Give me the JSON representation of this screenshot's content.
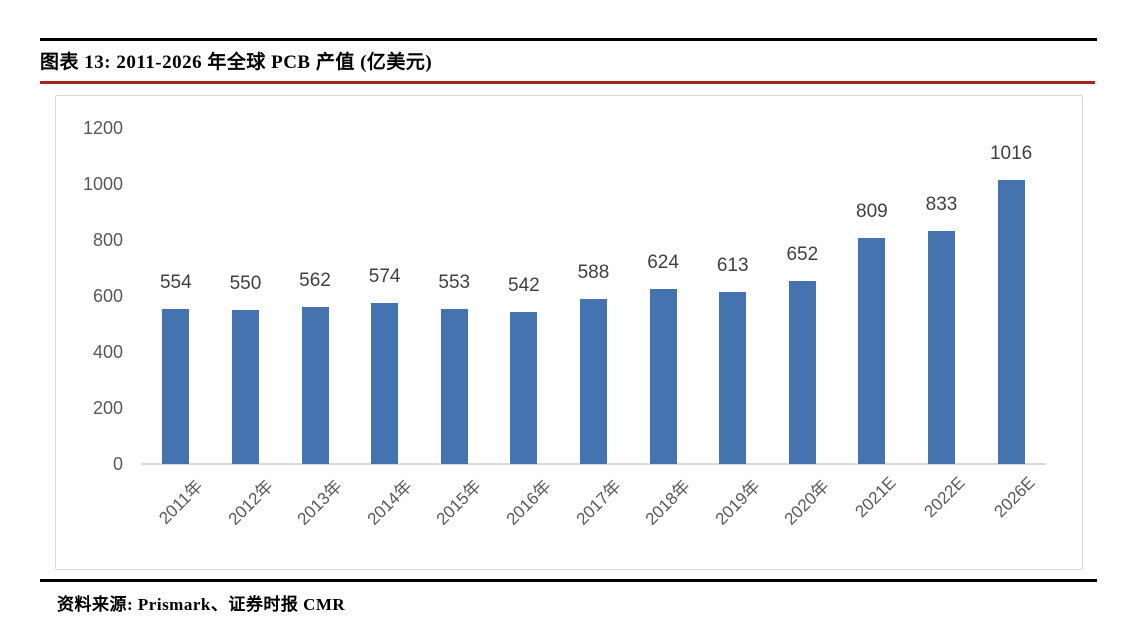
{
  "header": {
    "title": "图表 13: 2011-2026 年全球 PCB 产值 (亿美元)"
  },
  "footer": {
    "source": "资料来源: Prismark、证券时报 CMR"
  },
  "colors": {
    "bar": "#4473B0",
    "accent_rule": "#A6241C",
    "rule": "#000000",
    "axis_text": "#595959",
    "data_label_text": "#404040",
    "chart_frame": "#D9D9D9",
    "axis_line": "#D9D9D9"
  },
  "chart_data": {
    "type": "bar",
    "title": "2011-2026 年全球 PCB 产值 (亿美元)",
    "categories": [
      "2011年",
      "2012年",
      "2013年",
      "2014年",
      "2015年",
      "2016年",
      "2017年",
      "2018年",
      "2019年",
      "2020年",
      "2021E",
      "2022E",
      "2026E"
    ],
    "values": [
      554,
      550,
      562,
      574,
      553,
      542,
      588,
      624,
      613,
      652,
      809,
      833,
      1016
    ],
    "xlabel": "",
    "ylabel": "",
    "ylim": [
      0,
      1200
    ],
    "yticks": [
      0,
      200,
      400,
      600,
      800,
      1000,
      1200
    ],
    "grid": false,
    "legend_position": "none",
    "data_labels": true,
    "x_tick_rotation": 45
  }
}
